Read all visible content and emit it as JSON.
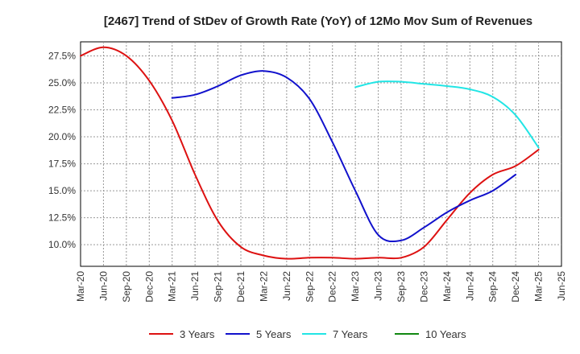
{
  "chart_data": {
    "type": "line",
    "title": "[2467]  Trend of StDev of Growth Rate (YoY) of 12Mo Mov Sum of Revenues",
    "xlabel": "",
    "ylabel": "",
    "x_categories": [
      "Mar-20",
      "Jun-20",
      "Sep-20",
      "Dec-20",
      "Mar-21",
      "Jun-21",
      "Sep-21",
      "Dec-21",
      "Mar-22",
      "Jun-22",
      "Sep-22",
      "Dec-22",
      "Mar-23",
      "Jun-23",
      "Sep-23",
      "Dec-23",
      "Mar-24",
      "Jun-24",
      "Sep-24",
      "Dec-24",
      "Mar-25",
      "Jun-25"
    ],
    "y_ticks": [
      10.0,
      12.5,
      15.0,
      17.5,
      20.0,
      22.5,
      25.0,
      27.5
    ],
    "y_tick_labels": [
      "10.0%",
      "12.5%",
      "15.0%",
      "17.5%",
      "20.0%",
      "22.5%",
      "25.0%",
      "27.5%"
    ],
    "ylim": [
      8.0,
      28.8
    ],
    "grid": true,
    "legend_position": "bottom",
    "series": [
      {
        "name": "3 Years",
        "color": "#dd1111",
        "start_index": 0,
        "values": [
          27.5,
          28.3,
          27.5,
          25.2,
          21.5,
          16.5,
          12.2,
          9.8,
          9.0,
          8.7,
          8.8,
          8.8,
          8.7,
          8.8,
          8.8,
          9.8,
          12.3,
          14.8,
          16.5,
          17.3,
          18.8
        ]
      },
      {
        "name": "5 Years",
        "color": "#1111cc",
        "start_index": 4,
        "values": [
          23.6,
          23.9,
          24.7,
          25.7,
          26.1,
          25.5,
          23.5,
          19.5,
          15.0,
          10.9,
          10.4,
          11.6,
          13.0,
          14.1,
          15.0,
          16.5
        ]
      },
      {
        "name": "7 Years",
        "color": "#22e5e5",
        "start_index": 12,
        "values": [
          24.6,
          25.1,
          25.1,
          24.9,
          24.7,
          24.4,
          23.7,
          22.0,
          19.0
        ]
      },
      {
        "name": "10 Years",
        "color": "#118811",
        "start_index": null,
        "values": []
      }
    ]
  }
}
